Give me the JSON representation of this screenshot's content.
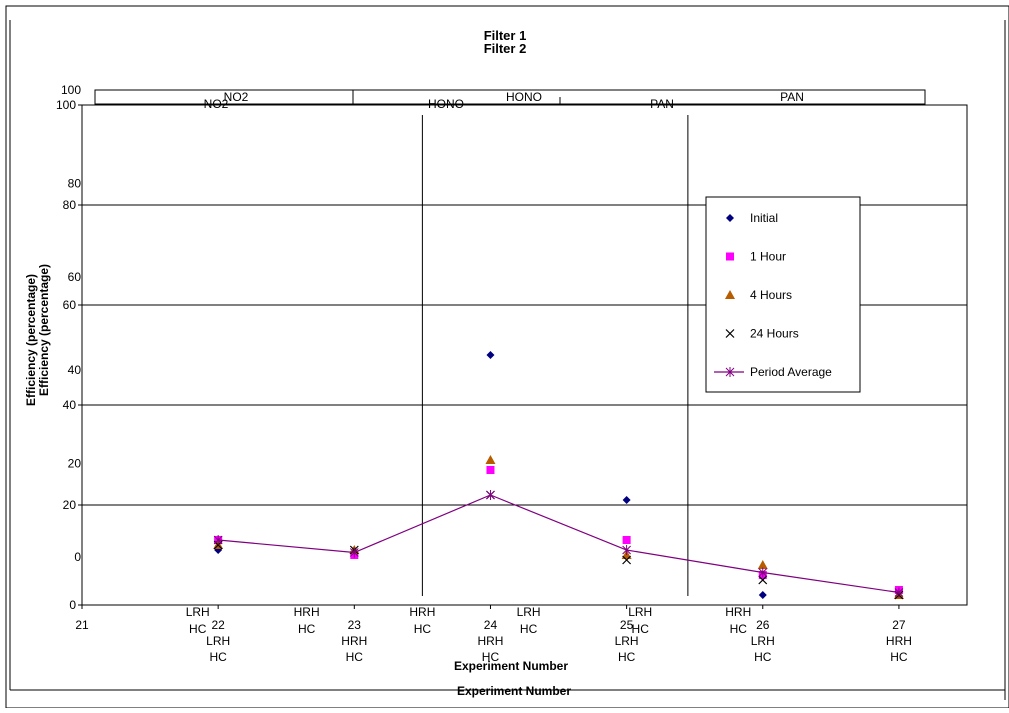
{
  "chart_data": {
    "type": "scatter",
    "titles": [
      "Filter 1",
      "Filter 2"
    ],
    "xlabel": "Experiment Number",
    "ylabel": "Efficiency (percentage)",
    "xlim": [
      21,
      27.5
    ],
    "ylim": [
      0,
      100
    ],
    "y_ticks_main": [
      "0",
      "20",
      "40",
      "60",
      "80",
      "100"
    ],
    "y_ticks_overlay": [
      "0",
      "20",
      "40",
      "60",
      "80",
      "100"
    ],
    "x_tick_labels": [
      {
        "x": 21,
        "lines": [
          "21"
        ]
      },
      {
        "x": 22,
        "lines": [
          "22",
          "LRH",
          "HC"
        ]
      },
      {
        "x": 23,
        "lines": [
          "23",
          "HRH",
          "HC"
        ]
      },
      {
        "x": 24,
        "lines": [
          "24",
          "HRH",
          "HC"
        ]
      },
      {
        "x": 25,
        "lines": [
          "25",
          "LRH",
          "HC"
        ]
      },
      {
        "x": 26,
        "lines": [
          "26",
          "LRH",
          "HC"
        ]
      },
      {
        "x": 27,
        "lines": [
          "27",
          "HRH",
          "HC"
        ]
      }
    ],
    "x_overlay_labels": [
      {
        "x": 21.85,
        "lines": [
          "LRH",
          "HC"
        ]
      },
      {
        "x": 22.65,
        "lines": [
          "HRH",
          "HC"
        ]
      },
      {
        "x": 23.5,
        "lines": [
          "HRH",
          "HC"
        ]
      },
      {
        "x": 24.28,
        "lines": [
          "LRH",
          "HC"
        ]
      },
      {
        "x": 25.1,
        "lines": [
          "LRH",
          "HC"
        ]
      },
      {
        "x": 25.82,
        "lines": [
          "HRH",
          "HC"
        ]
      }
    ],
    "sections_top": [
      "NO2",
      "HONO",
      "PAN"
    ],
    "sections_plot": [
      "NO2",
      "HONO",
      "PAN"
    ],
    "section_dividers": [
      23.5,
      25.45
    ],
    "series": [
      {
        "name": "Initial",
        "marker": "diamond",
        "color": "#000080",
        "x": [
          22,
          23,
          24,
          25,
          26,
          27
        ],
        "y": [
          11,
          10,
          50,
          21,
          2,
          3
        ]
      },
      {
        "name": "1 Hour",
        "marker": "square",
        "color": "#ff00ff",
        "x": [
          22,
          23,
          24,
          25,
          26,
          27
        ],
        "y": [
          13,
          10,
          27,
          13,
          6,
          3
        ]
      },
      {
        "name": "4 Hours",
        "marker": "triangle",
        "color": "#b85c00",
        "x": [
          22,
          23,
          24,
          25,
          26,
          27
        ],
        "y": [
          12,
          11,
          29,
          10,
          8,
          2
        ]
      },
      {
        "name": "24 Hours",
        "marker": "x",
        "color": "#000000",
        "x": [
          22,
          23,
          24,
          25,
          26,
          27
        ],
        "y": [
          12,
          11,
          22,
          9,
          5,
          2
        ]
      },
      {
        "name": "Period Average",
        "marker": "star-line",
        "color": "#800080",
        "x": [
          22,
          23,
          24,
          25,
          26,
          27
        ],
        "y": [
          13,
          10.5,
          22,
          11,
          6.5,
          2.5
        ]
      }
    ],
    "grid": true,
    "legend_position": "right"
  }
}
